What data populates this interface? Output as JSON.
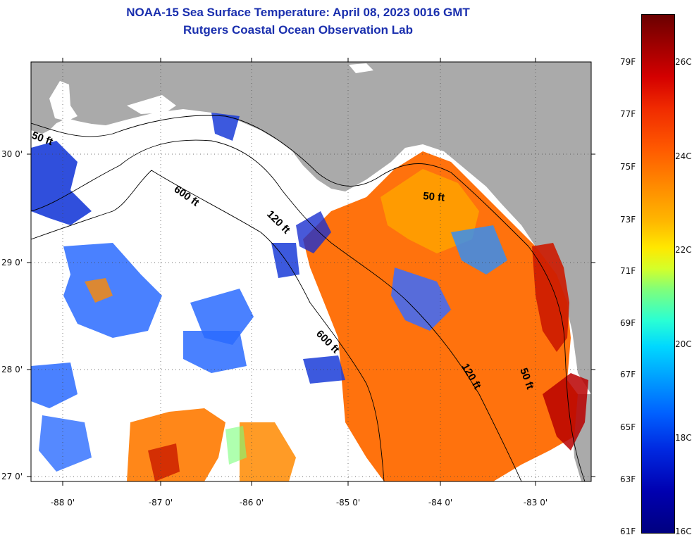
{
  "title": {
    "line1": "NOAA-15 Sea Surface Temperature:  April 08, 2023 0016 GMT",
    "line2": "Rutgers Coastal Ocean Observation Lab"
  },
  "axes": {
    "lat_labels": [
      "30 0'",
      "29 0'",
      "28 0'",
      "27 0'"
    ],
    "lon_labels": [
      "-88 0'",
      "-87 0'",
      "-86 0'",
      "-85 0'",
      "-84 0'",
      "-83 0'"
    ]
  },
  "contours": {
    "label_50_w": "50 ft",
    "label_600_n": "600 ft",
    "label_120_n": "120 ft",
    "label_50_e": "50 ft",
    "label_600_s": "600 ft",
    "label_120_s": "120 ft",
    "label_50_s": "50 ft"
  },
  "colorbar": {
    "fahrenheit": [
      "79F",
      "77F",
      "75F",
      "73F",
      "71F",
      "69F",
      "67F",
      "65F",
      "63F",
      "61F"
    ],
    "celsius": [
      "26C",
      "24C",
      "22C",
      "20C",
      "18C",
      "16C"
    ]
  },
  "colors": {
    "land": "#aaaaaa",
    "no_data": "#ffffff",
    "title": "#1a2fae"
  }
}
